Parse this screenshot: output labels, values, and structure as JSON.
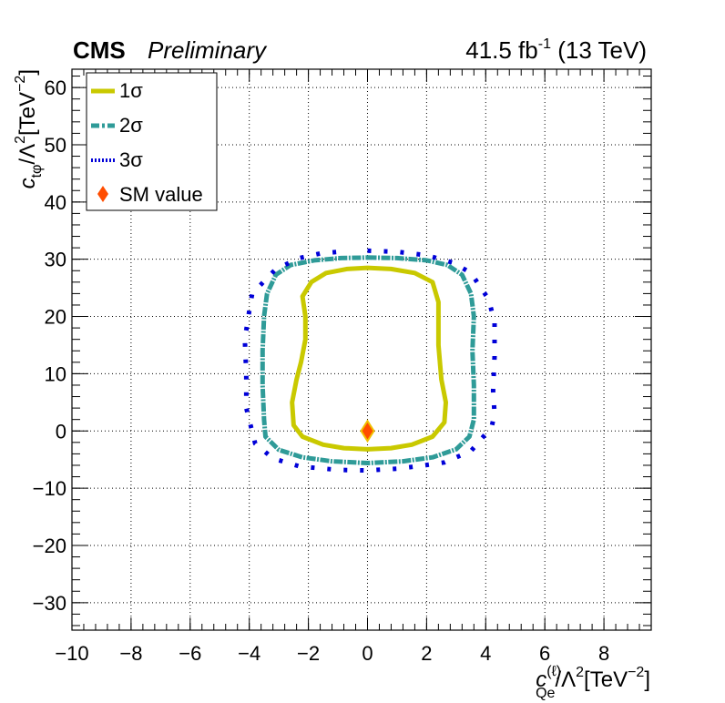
{
  "header": {
    "cms": "CMS",
    "preliminary": "Preliminary",
    "lumi_value": "41.5 fb",
    "lumi_exp": "-1",
    "lumi_energy": " (13 TeV)"
  },
  "axes": {
    "x_title": {
      "base": "c",
      "sup": "(ℓ)",
      "sub": "Qe",
      "rest": "/Λ",
      "sq": "2",
      "unit": "[TeV",
      "unit_exp": "−2",
      "close": "]"
    },
    "y_title": {
      "base": "c",
      "sub": "tφ",
      "rest": "/Λ",
      "sq": "2",
      "unit": "[TeV",
      "unit_exp": "−2",
      "close": "]"
    }
  },
  "legend": {
    "items": [
      {
        "label": "1σ",
        "color": "#c9c900",
        "style": "solid"
      },
      {
        "label": "2σ",
        "color": "#2f9b98",
        "style": "dashdot"
      },
      {
        "label": "3σ",
        "color": "#0000d8",
        "style": "dotted"
      },
      {
        "label": "SM value",
        "color": "#ff4d00",
        "style": "marker"
      }
    ]
  },
  "chart_data": {
    "type": "contour",
    "title": "",
    "xlabel": "c_Qe^(ℓ)/Λ^2[TeV^-2]",
    "ylabel": "c_tφ/Λ^2[TeV^-2]",
    "xlim": [
      -10,
      9.6
    ],
    "ylim": [
      -34.8,
      63.2
    ],
    "x_ticks": [
      -10,
      -8,
      -6,
      -4,
      -2,
      0,
      2,
      4,
      6,
      8
    ],
    "x_tick_labels": [
      "−10",
      "−8",
      "−6",
      "−4",
      "−2",
      "0",
      "2",
      "4",
      "6",
      "8"
    ],
    "y_ticks": [
      -30,
      -20,
      -10,
      0,
      10,
      20,
      30,
      40,
      50,
      60
    ],
    "y_tick_labels": [
      "−30",
      "−20",
      "−10",
      "0",
      "10",
      "20",
      "30",
      "40",
      "50",
      "60"
    ],
    "grid": true,
    "legend_position": "top-left",
    "sm_point": {
      "x": 0,
      "y": 0
    },
    "series": [
      {
        "name": "1σ",
        "closed": true,
        "points": [
          [
            0,
            28.5
          ],
          [
            0.8,
            28.3
          ],
          [
            1.6,
            27.6
          ],
          [
            2.2,
            26
          ],
          [
            2.4,
            22.5
          ],
          [
            2.4,
            15
          ],
          [
            2.5,
            9
          ],
          [
            2.65,
            5
          ],
          [
            2.6,
            1.5
          ],
          [
            2.2,
            -1
          ],
          [
            1.5,
            -2.4
          ],
          [
            0.8,
            -3
          ],
          [
            0,
            -3.2
          ],
          [
            -0.8,
            -3
          ],
          [
            -1.5,
            -2.4
          ],
          [
            -2.2,
            -1
          ],
          [
            -2.5,
            1
          ],
          [
            -2.55,
            5
          ],
          [
            -2.4,
            9
          ],
          [
            -2.25,
            12
          ],
          [
            -2.1,
            16
          ],
          [
            -2.1,
            20
          ],
          [
            -2.2,
            23.5
          ],
          [
            -1.9,
            26
          ],
          [
            -1.4,
            27.6
          ],
          [
            -0.7,
            28.3
          ]
        ]
      },
      {
        "name": "2σ",
        "closed": true,
        "points": [
          [
            0,
            30.3
          ],
          [
            1,
            30.2
          ],
          [
            2,
            29.8
          ],
          [
            2.7,
            29
          ],
          [
            3.2,
            27.3
          ],
          [
            3.5,
            24
          ],
          [
            3.6,
            20
          ],
          [
            3.55,
            14
          ],
          [
            3.6,
            8
          ],
          [
            3.6,
            2
          ],
          [
            3.45,
            -1
          ],
          [
            3,
            -3.2
          ],
          [
            2.2,
            -4.6
          ],
          [
            1.2,
            -5.3
          ],
          [
            0,
            -5.6
          ],
          [
            -1.2,
            -5.3
          ],
          [
            -2.2,
            -4.6
          ],
          [
            -3,
            -3.3
          ],
          [
            -3.45,
            -1
          ],
          [
            -3.5,
            2
          ],
          [
            -3.55,
            8
          ],
          [
            -3.55,
            14
          ],
          [
            -3.5,
            20
          ],
          [
            -3.4,
            24
          ],
          [
            -3.1,
            27.3
          ],
          [
            -2.6,
            29
          ],
          [
            -1.8,
            29.8
          ],
          [
            -0.9,
            30.2
          ]
        ]
      },
      {
        "name": "3σ",
        "closed": false,
        "points": [
          [
            0,
            31.5
          ],
          [
            1,
            31.3
          ],
          [
            2,
            30.7
          ],
          [
            2.9,
            29.4
          ],
          [
            3.5,
            27.6
          ],
          [
            4.1,
            23
          ],
          [
            4.3,
            19
          ],
          [
            4.3,
            13
          ],
          [
            4.25,
            7
          ],
          [
            4.3,
            3
          ],
          [
            4.2,
            0.7
          ],
          [
            3.5,
            -3.5
          ],
          [
            2.6,
            -5.5
          ],
          [
            1.8,
            -6.1
          ],
          [
            1,
            -6.6
          ],
          [
            0,
            -6.9
          ],
          [
            -1,
            -6.8
          ],
          [
            -2.3,
            -6.2
          ],
          [
            -3.2,
            -4.8
          ],
          [
            -3.8,
            -2.2
          ],
          [
            -4.1,
            4
          ],
          [
            -4.1,
            10
          ],
          [
            -4.15,
            16
          ],
          [
            -4.0,
            21
          ],
          [
            -3.9,
            24
          ],
          [
            -3.1,
            28.3
          ],
          [
            -2.3,
            30.2
          ],
          [
            -1.6,
            31
          ],
          [
            -0.8,
            31.4
          ]
        ]
      }
    ]
  }
}
